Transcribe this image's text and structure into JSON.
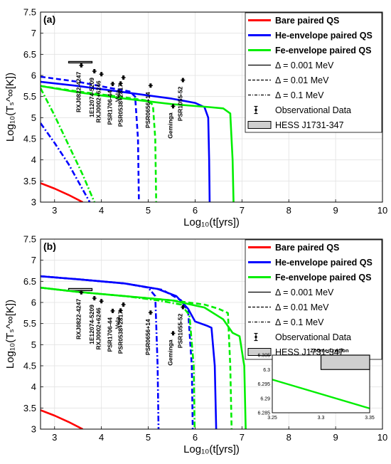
{
  "chart_data": [
    {
      "type": "line",
      "panel_label": "(a)",
      "xlabel": "Log₁₀(t[yrs])",
      "ylabel": "Log₁₀(Tₛ^∞[K])",
      "xlim": [
        2.7,
        10
      ],
      "ylim": [
        3,
        7.5
      ],
      "xticks": [
        3,
        4,
        5,
        6,
        7,
        8,
        9,
        10
      ],
      "yticks": [
        3,
        3.5,
        4,
        4.5,
        5,
        5.5,
        6,
        6.5,
        7,
        7.5
      ],
      "grid": true,
      "legend_position": "top-right",
      "legend": [
        {
          "label": "Bare paired QS",
          "color": "#ff0000",
          "style": "solid",
          "bold": true
        },
        {
          "label": "He-envelope paired QS",
          "color": "#0000ff",
          "style": "solid",
          "bold": true
        },
        {
          "label": "Fe-envelope paired QS",
          "color": "#00ee00",
          "style": "solid",
          "bold": true
        },
        {
          "label": "Δ = 0.001 MeV",
          "color": "#000000",
          "style": "solid"
        },
        {
          "label": "Δ = 0.01 MeV",
          "color": "#000000",
          "style": "dashed"
        },
        {
          "label": "Δ = 0.1 MeV",
          "color": "#000000",
          "style": "dashdot"
        },
        {
          "label": "Observational Data",
          "color": "#000000",
          "style": "errorbar"
        },
        {
          "label": "HESS J1731-347",
          "color": "#d3d3d3",
          "style": "box"
        }
      ],
      "series": [
        {
          "color": "#ff0000",
          "style": "solid",
          "x": [
            2.7,
            3.0,
            3.3,
            3.6
          ],
          "y": [
            3.45,
            3.32,
            3.17,
            3.0
          ]
        },
        {
          "color": "#0000ff",
          "style": "solid",
          "x": [
            2.7,
            3.5,
            4.5,
            5.5,
            6.0,
            6.2,
            6.28,
            6.3,
            6.31
          ],
          "y": [
            5.85,
            5.75,
            5.6,
            5.45,
            5.35,
            5.25,
            5.0,
            4.0,
            3.0
          ]
        },
        {
          "color": "#0000ff",
          "style": "dashed",
          "x": [
            2.7,
            3.5,
            4.2,
            4.6,
            4.72,
            4.78,
            4.8
          ],
          "y": [
            5.97,
            5.85,
            5.7,
            5.62,
            5.5,
            4.5,
            3.0
          ]
        },
        {
          "color": "#0000ff",
          "style": "dashdot",
          "x": [
            2.7,
            3.0,
            3.3,
            3.55,
            3.75
          ],
          "y": [
            4.87,
            4.4,
            3.9,
            3.4,
            3.0
          ]
        },
        {
          "color": "#00ee00",
          "style": "solid",
          "x": [
            2.7,
            3.5,
            4.5,
            5.5,
            6.3,
            6.6,
            6.75,
            6.8,
            6.82
          ],
          "y": [
            5.75,
            5.6,
            5.45,
            5.32,
            5.25,
            5.22,
            5.1,
            4.0,
            3.0
          ]
        },
        {
          "color": "#00ee00",
          "style": "dashed",
          "x": [
            2.7,
            3.5,
            4.5,
            5.0,
            5.1,
            5.15,
            5.17
          ],
          "y": [
            5.75,
            5.62,
            5.48,
            5.4,
            5.3,
            4.5,
            3.0
          ]
        },
        {
          "color": "#00ee00",
          "style": "dashdot",
          "x": [
            2.7,
            3.0,
            3.3,
            3.6,
            3.85
          ],
          "y": [
            5.7,
            5.05,
            4.35,
            3.65,
            3.0
          ]
        }
      ],
      "hess_box": {
        "x": [
          3.3,
          3.8
        ],
        "y": [
          6.3,
          6.33
        ]
      },
      "observations": [
        {
          "label": "RXJ0822-4247",
          "x": 3.57,
          "y": 6.24
        },
        {
          "label": "1E12074-5209",
          "x": 3.85,
          "y": 6.1
        },
        {
          "label": "RXJ0002+6246",
          "x": 4.0,
          "y": 6.03
        },
        {
          "label": "PSR1706-44",
          "x": 4.24,
          "y": 5.8
        },
        {
          "label": "Vela",
          "x": 4.41,
          "y": 5.81
        },
        {
          "label": "PSR0538+2817",
          "x": 4.47,
          "y": 5.95
        },
        {
          "label": "PSR0656+14",
          "x": 5.05,
          "y": 5.76
        },
        {
          "label": "Geminga",
          "x": 5.53,
          "y": 5.27
        },
        {
          "label": "PSR1055-52",
          "x": 5.74,
          "y": 5.89
        }
      ]
    },
    {
      "type": "line",
      "panel_label": "(b)",
      "xlabel": "Log₁₀(t[yrs])",
      "ylabel": "Log₁₀(Tₛ^∞[K])",
      "xlim": [
        2.7,
        10
      ],
      "ylim": [
        3,
        7.5
      ],
      "xticks": [
        3,
        4,
        5,
        6,
        7,
        8,
        9,
        10
      ],
      "yticks": [
        3,
        3.5,
        4,
        4.5,
        5,
        5.5,
        6,
        6.5,
        7,
        7.5
      ],
      "grid": true,
      "legend_position": "top-right",
      "legend": [
        {
          "label": "Bare paired QS",
          "color": "#ff0000",
          "style": "solid",
          "bold": true
        },
        {
          "label": "He-envelope paired QS",
          "color": "#0000ff",
          "style": "solid",
          "bold": true
        },
        {
          "label": "Fe-envelope paired QS",
          "color": "#00ee00",
          "style": "solid",
          "bold": true
        },
        {
          "label": "Δ = 0.001 MeV",
          "color": "#000000",
          "style": "solid"
        },
        {
          "label": "Δ = 0.01 MeV",
          "color": "#000000",
          "style": "dashed"
        },
        {
          "label": "Δ = 0.1 MeV",
          "color": "#000000",
          "style": "dashdot"
        },
        {
          "label": "Observational Data",
          "color": "#000000",
          "style": "errorbar"
        },
        {
          "label": "HESS J1731-347",
          "color": "#d3d3d3",
          "style": "box"
        }
      ],
      "series": [
        {
          "color": "#ff0000",
          "style": "solid",
          "x": [
            2.7,
            3.0,
            3.3,
            3.6
          ],
          "y": [
            3.45,
            3.32,
            3.17,
            3.0
          ]
        },
        {
          "color": "#0000ff",
          "style": "solid",
          "x": [
            2.7,
            3.5,
            4.5,
            5.2,
            5.6,
            5.85,
            6.0,
            6.25,
            6.35,
            6.42,
            6.45
          ],
          "y": [
            6.62,
            6.55,
            6.45,
            6.32,
            6.15,
            5.85,
            5.55,
            5.45,
            5.4,
            4.5,
            3.0
          ]
        },
        {
          "color": "#0000ff",
          "style": "dashed",
          "x": [
            2.7,
            3.5,
            4.5,
            5.3,
            5.7,
            5.85,
            5.93,
            5.95
          ],
          "y": [
            6.62,
            6.55,
            6.45,
            6.3,
            6.05,
            5.8,
            4.5,
            3.0
          ]
        },
        {
          "color": "#0000ff",
          "style": "dashdot",
          "x": [
            2.7,
            3.5,
            4.5,
            5.0,
            5.15,
            5.2,
            5.22
          ],
          "y": [
            6.62,
            6.55,
            6.45,
            6.35,
            6.15,
            4.5,
            3.0
          ]
        },
        {
          "color": "#00ee00",
          "style": "solid",
          "x": [
            2.7,
            3.5,
            4.5,
            5.5,
            6.2,
            6.6,
            6.8,
            6.95,
            7.05,
            7.08
          ],
          "y": [
            6.35,
            6.25,
            6.15,
            6.05,
            5.88,
            5.6,
            5.28,
            5.2,
            4.5,
            3.0
          ]
        },
        {
          "color": "#00ee00",
          "style": "dashed",
          "x": [
            2.7,
            3.5,
            4.5,
            5.5,
            6.2,
            6.5,
            6.7,
            6.75,
            6.78
          ],
          "y": [
            6.35,
            6.25,
            6.15,
            6.05,
            5.95,
            5.85,
            5.75,
            4.5,
            3.0
          ]
        },
        {
          "color": "#00ee00",
          "style": "dashdot",
          "x": [
            2.7,
            3.5,
            4.5,
            5.2,
            5.7,
            5.88,
            5.97,
            5.99
          ],
          "y": [
            6.35,
            6.25,
            6.15,
            6.05,
            5.95,
            5.7,
            4.5,
            3.0
          ]
        }
      ],
      "hess_box": {
        "x": [
          3.3,
          3.8
        ],
        "y": [
          6.28,
          6.33
        ]
      },
      "observations": [
        {
          "label": "RXJ0822-4247",
          "x": 3.57,
          "y": 6.24
        },
        {
          "label": "1E12074-5209",
          "x": 3.85,
          "y": 6.1
        },
        {
          "label": "RXJ0002+6246",
          "x": 4.0,
          "y": 6.03
        },
        {
          "label": "PSR1706-44",
          "x": 4.24,
          "y": 5.8
        },
        {
          "label": "Vela",
          "x": 4.41,
          "y": 5.81
        },
        {
          "label": "PSR0538+2817",
          "x": 4.47,
          "y": 5.95
        },
        {
          "label": "PSR0656+14",
          "x": 5.05,
          "y": 5.76
        },
        {
          "label": "Geminga",
          "x": 5.53,
          "y": 5.27
        },
        {
          "label": "PSR1055-52",
          "x": 5.74,
          "y": 5.89
        }
      ],
      "inset": {
        "title": "Zoomed region",
        "xlim": [
          3.25,
          3.35
        ],
        "ylim": [
          6.285,
          6.305
        ],
        "xticks": [
          3.25,
          3.3,
          3.35
        ],
        "yticks": [
          6.285,
          6.29,
          6.295,
          6.3,
          6.305
        ],
        "hess_box": {
          "x": [
            3.3,
            3.35
          ],
          "y": [
            6.3,
            6.305
          ]
        },
        "series": [
          {
            "color": "#00ee00",
            "style": "solid",
            "x": [
              3.25,
              3.35
            ],
            "y": [
              6.2965,
              6.2865
            ]
          }
        ]
      }
    }
  ]
}
